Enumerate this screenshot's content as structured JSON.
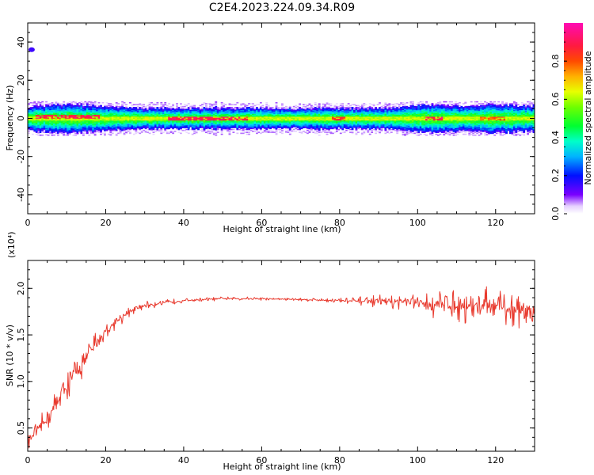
{
  "figure_title": "C2E4.2023.224.09.34.R09",
  "colors": {
    "snr_line": "#e83a2e",
    "spectrogram_band_peak": "#e83030",
    "axis": "#000000"
  },
  "chart_data": [
    {
      "type": "heatmap",
      "name": "spectrogram",
      "xlabel": "Height of straight line (km)",
      "ylabel": "Frequency (Hz)",
      "xlim": [
        0,
        130
      ],
      "ylim": [
        -50,
        50
      ],
      "x_ticks": [
        0,
        20,
        40,
        60,
        80,
        100,
        120
      ],
      "y_ticks": [
        40,
        20,
        0,
        -20,
        -40
      ],
      "y_tick_labels": [
        "40",
        "20",
        "0",
        "-20",
        "-40"
      ],
      "colorbar": {
        "label": "Normalized spectral amplitude",
        "range": [
          0.0,
          1.0
        ],
        "ticks": [
          0.0,
          0.2,
          0.4,
          0.6,
          0.8
        ],
        "tick_labels": [
          "0.0",
          "0.2",
          "0.4",
          "0.6",
          "0.8"
        ],
        "colormap": "gist_rainbow (white → violet → blue → cyan → green → yellow → orange → red → magenta)"
      },
      "features": {
        "main_band_center_hz": 0,
        "main_band_halfwidth_hz": 4,
        "isolated_spot": {
          "x_km": 1,
          "freq_hz": 36,
          "amplitude": 0.15
        },
        "band_edge_knots_km": [
          0,
          10,
          20,
          30,
          60,
          90,
          104,
          110,
          120,
          130
        ],
        "band_halfwidth_knots_hz": [
          4,
          5,
          4,
          3,
          3,
          3,
          5,
          4,
          5,
          4
        ],
        "peak_segments": [
          {
            "x_range_km": [
              2,
              18
            ],
            "freq_hz": 1,
            "amplitude": 0.95
          },
          {
            "x_range_km": [
              36,
              56
            ],
            "freq_hz": 0,
            "amplitude": 0.95
          },
          {
            "x_range_km": [
              78,
              81
            ],
            "freq_hz": 0,
            "amplitude": 0.9
          },
          {
            "x_range_km": [
              102,
              106
            ],
            "freq_hz": 0,
            "amplitude": 0.95
          },
          {
            "x_range_km": [
              116,
              122
            ],
            "freq_hz": 0,
            "amplitude": 0.85
          }
        ]
      }
    },
    {
      "type": "line",
      "name": "snr",
      "xlabel": "Height of straight line (km)",
      "ylabel": "SNR (10 * v/v)",
      "y_scale_label": "(x10⁴)",
      "xlim": [
        0,
        130
      ],
      "ylim": [
        0.25,
        2.3
      ],
      "x_ticks": [
        0,
        20,
        40,
        60,
        80,
        100,
        120
      ],
      "y_ticks": [
        0.5,
        1.0,
        1.5,
        2.0
      ],
      "y_tick_labels": [
        "0.5",
        "1.0",
        "1.5",
        "2.0"
      ],
      "envelope": {
        "x_km": [
          0,
          5,
          10,
          15,
          20,
          25,
          30,
          40,
          50,
          60,
          70,
          80,
          85,
          90,
          95,
          100,
          105,
          110,
          115,
          120,
          125,
          130
        ],
        "mean": [
          0.35,
          0.6,
          0.95,
          1.25,
          1.55,
          1.72,
          1.82,
          1.87,
          1.89,
          1.89,
          1.88,
          1.87,
          1.86,
          1.87,
          1.86,
          1.84,
          1.83,
          1.82,
          1.82,
          1.8,
          1.76,
          1.78
        ],
        "amplitude": [
          0.08,
          0.15,
          0.22,
          0.2,
          0.12,
          0.07,
          0.05,
          0.025,
          0.02,
          0.02,
          0.02,
          0.03,
          0.05,
          0.08,
          0.09,
          0.12,
          0.18,
          0.2,
          0.22,
          0.24,
          0.22,
          0.22
        ]
      },
      "samples_per_km": 6
    }
  ]
}
